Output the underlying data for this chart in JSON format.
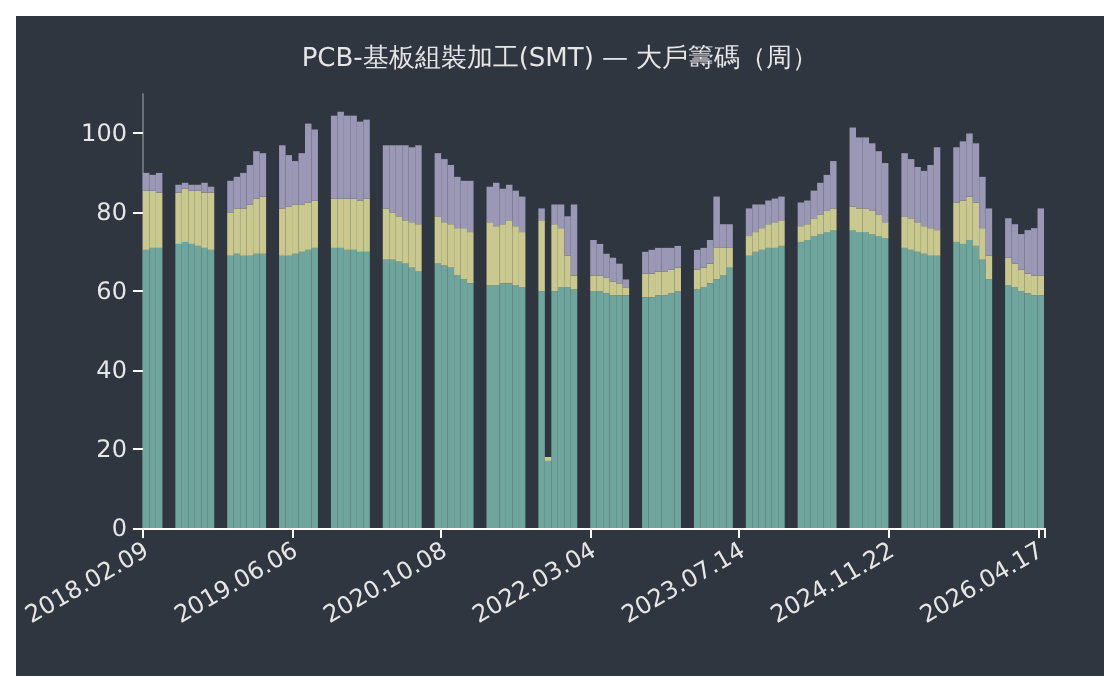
{
  "chart_data": {
    "type": "bar",
    "title": "PCB-基板組裝加工(SMT) — 大戶籌碼（周）",
    "stacked": true,
    "categories": [
      "2018.02.09",
      null,
      null,
      null,
      null,
      null,
      null,
      null,
      null,
      null,
      null,
      null,
      null,
      null,
      null,
      null,
      null,
      null,
      null,
      null,
      null,
      null,
      null,
      "2019.06.06",
      null,
      null,
      null,
      null,
      null,
      null,
      null,
      null,
      null,
      null,
      null,
      null,
      null,
      null,
      null,
      null,
      null,
      null,
      null,
      null,
      null,
      null,
      "2020.10.08",
      null,
      null,
      null,
      null,
      null,
      null,
      null,
      null,
      null,
      null,
      null,
      null,
      null,
      null,
      null,
      null,
      null,
      null,
      null,
      null,
      null,
      null,
      "2022.03.04",
      null,
      null,
      null,
      null,
      null,
      null,
      null,
      null,
      null,
      null,
      null,
      null,
      null,
      null,
      null,
      null,
      null,
      null,
      null,
      null,
      null,
      null,
      "2023.07.14",
      null,
      null,
      null,
      null,
      null,
      null,
      null,
      null,
      null,
      null,
      null,
      null,
      null,
      null,
      null,
      null,
      null,
      null,
      null,
      null,
      null,
      null,
      "2024.11.22",
      null,
      null,
      null,
      null,
      null,
      null,
      null,
      null,
      null,
      null,
      null,
      null,
      null,
      null,
      null,
      null,
      null,
      null,
      null,
      null,
      null,
      null,
      "2026.04.17"
    ],
    "series": [
      {
        "color": "#6fa59c",
        "values": [
          70.5,
          71,
          71,
          null,
          null,
          72,
          72.5,
          72,
          71.5,
          71,
          70.5,
          null,
          null,
          69,
          69.5,
          69,
          69,
          69.5,
          69.5,
          null,
          null,
          69,
          69,
          69.5,
          70,
          70.5,
          71,
          null,
          null,
          71,
          71,
          70.5,
          70.5,
          70,
          70,
          null,
          null,
          68,
          68,
          67.5,
          67,
          66,
          65,
          null,
          null,
          67,
          66.5,
          66,
          64,
          63,
          62,
          null,
          null,
          61.5,
          61.5,
          62,
          62,
          61.5,
          61,
          null,
          null,
          60,
          17,
          60,
          61,
          61,
          60.5,
          null,
          null,
          60,
          60,
          59.5,
          59,
          59,
          59,
          null,
          null,
          58.5,
          58.5,
          59,
          59,
          59.5,
          60,
          null,
          null,
          60.5,
          61,
          62,
          63,
          64,
          66,
          null,
          null,
          69,
          70,
          70.5,
          71,
          71,
          71.5,
          null,
          null,
          72.5,
          73,
          74,
          74.5,
          75,
          75.5,
          null,
          null,
          75.5,
          75,
          75,
          74.5,
          74,
          73.5,
          null,
          null,
          71,
          70.5,
          70,
          69.5,
          69,
          69,
          null,
          null,
          72.5,
          72,
          73,
          71.5,
          68,
          63,
          null,
          null,
          61.5,
          61,
          60,
          59.5,
          59,
          59
        ]
      },
      {
        "color": "#c8c88f",
        "values": [
          15,
          14.5,
          14,
          null,
          null,
          13,
          13.5,
          13.5,
          14,
          14,
          14.5,
          null,
          null,
          11,
          11.5,
          12,
          13,
          14,
          14.5,
          null,
          null,
          12,
          12.5,
          12.5,
          12,
          12,
          12,
          null,
          null,
          12.5,
          12.5,
          13,
          13,
          13,
          13.5,
          null,
          null,
          13,
          12,
          11.5,
          11,
          11.5,
          12,
          null,
          null,
          12,
          11,
          11,
          12,
          13,
          13,
          null,
          null,
          16,
          15,
          15,
          16,
          15,
          14,
          null,
          null,
          18,
          1,
          17,
          15,
          8,
          3.5,
          null,
          null,
          4,
          4,
          4,
          3.5,
          3,
          2,
          null,
          null,
          6,
          6,
          6,
          6,
          6,
          6,
          null,
          null,
          5,
          5,
          5,
          8,
          7,
          5,
          null,
          null,
          5,
          5,
          5.5,
          6,
          6.5,
          6.5,
          null,
          null,
          4,
          4,
          4.5,
          5,
          5.5,
          5.5,
          null,
          null,
          6,
          6,
          6,
          6,
          5.5,
          4,
          null,
          null,
          8,
          8,
          7.5,
          7,
          7,
          6.5,
          null,
          null,
          10,
          11,
          11,
          11,
          8,
          6,
          null,
          null,
          7,
          6,
          5.5,
          5,
          5,
          5
        ]
      },
      {
        "color": "#9a98b4",
        "values": [
          4.5,
          4,
          5,
          null,
          null,
          2,
          1.5,
          1.5,
          1.5,
          2.5,
          1.5,
          null,
          null,
          8,
          8,
          9,
          10,
          12,
          11,
          null,
          null,
          16,
          13,
          11,
          13,
          20,
          18,
          null,
          null,
          21,
          22,
          21,
          21,
          20,
          20,
          null,
          null,
          16,
          17,
          18,
          19,
          19,
          20,
          null,
          null,
          16,
          16,
          15,
          13,
          12,
          13,
          null,
          null,
          9,
          11,
          9,
          9,
          9,
          9,
          null,
          null,
          3,
          0,
          5,
          6,
          10,
          18,
          null,
          null,
          9,
          8,
          6,
          6,
          5,
          2,
          null,
          null,
          5.5,
          6,
          6,
          6,
          5.5,
          5.5,
          null,
          null,
          5,
          5,
          6,
          13,
          6,
          6,
          null,
          null,
          7,
          7,
          6,
          6,
          6,
          6,
          null,
          null,
          6,
          6,
          7,
          8,
          9,
          12,
          null,
          null,
          20,
          18,
          18,
          17,
          16,
          15,
          null,
          null,
          16,
          15,
          14,
          14,
          16,
          21,
          null,
          null,
          14,
          15,
          16,
          15,
          13,
          12,
          null,
          null,
          10,
          10,
          9,
          11,
          12,
          17
        ]
      }
    ],
    "ylim": [
      0,
      110
    ],
    "yticks": [
      0,
      20,
      40,
      60,
      80,
      100
    ],
    "grid": false
  }
}
